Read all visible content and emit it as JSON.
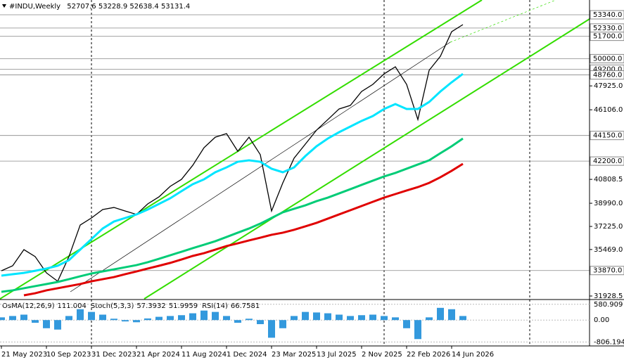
{
  "chart_data": {
    "type": "line",
    "symbol": "#INDU,Weekly",
    "ohlc": [
      52707.6,
      53228.9,
      52638.4,
      53131.4
    ],
    "categories": [
      "21 May 2023",
      null,
      null,
      null,
      "10 Sep 2023",
      null,
      null,
      null,
      "31 Dec 2023",
      null,
      null,
      null,
      "21 Apr 2024",
      null,
      null,
      null,
      "11 Aug 2024",
      null,
      null,
      null,
      "1 Dec 2024",
      null,
      null,
      null,
      "23 Mar 2025",
      null,
      null,
      null,
      "13 Jul 2025",
      null,
      null,
      null,
      "2 Nov 2025",
      null,
      null,
      null,
      "22 Feb 2026",
      null,
      null,
      null,
      "14 Jun 2026",
      null
    ],
    "series": [
      {
        "color": "#000000",
        "values": [
          33850,
          34230,
          35460,
          34930,
          33690,
          33050,
          34930,
          37330,
          37870,
          38510,
          38670,
          38400,
          38140,
          38940,
          39480,
          40280,
          40810,
          41880,
          43220,
          44020,
          44290,
          42950,
          44020,
          42690,
          38400,
          40540,
          42420,
          43490,
          44560,
          45360,
          46170,
          46440,
          47500,
          48040,
          48840,
          49380,
          48040,
          45360,
          49110,
          50180,
          52050,
          52590
        ]
      },
      {
        "color": "#00e5ff",
        "values": [
          33480,
          33590,
          33690,
          33850,
          34020,
          34230,
          34660,
          35460,
          36260,
          37070,
          37600,
          37870,
          38140,
          38510,
          38940,
          39370,
          39910,
          40440,
          40810,
          41350,
          41720,
          42150,
          42260,
          42150,
          41620,
          41350,
          41720,
          42580,
          43330,
          43920,
          44400,
          44830,
          45260,
          45630,
          46170,
          46540,
          46170,
          46170,
          46700,
          47500,
          48200,
          48840
        ]
      },
      {
        "color": "#00cc77",
        "values": [
          32250,
          32360,
          32520,
          32680,
          32840,
          33000,
          33210,
          33430,
          33640,
          33800,
          33960,
          34120,
          34280,
          34500,
          34760,
          35030,
          35300,
          35570,
          35830,
          36100,
          36420,
          36750,
          37070,
          37440,
          37870,
          38300,
          38570,
          38830,
          39150,
          39420,
          39740,
          40060,
          40390,
          40710,
          41030,
          41300,
          41620,
          41940,
          42260,
          42800,
          43330,
          43920
        ]
      },
      {
        "color": "#e00000",
        "values": [
          null,
          null,
          31980,
          32140,
          32360,
          32520,
          32680,
          32840,
          33050,
          33210,
          33370,
          33590,
          33800,
          34020,
          34230,
          34450,
          34710,
          34980,
          35190,
          35460,
          35730,
          35940,
          36160,
          36370,
          36590,
          36750,
          36970,
          37230,
          37500,
          37820,
          38140,
          38460,
          38780,
          39100,
          39420,
          39690,
          39960,
          40220,
          40540,
          40970,
          41460,
          41990
        ]
      }
    ],
    "ylim": [
      31714,
      54464
    ],
    "yticks": [
      {
        "value": 47925,
        "label": "47925.0"
      },
      {
        "value": 46106,
        "label": "46106.0"
      },
      {
        "value": 40808.5,
        "label": "40808.5"
      },
      {
        "value": 38990,
        "label": "38990.0"
      },
      {
        "value": 37225,
        "label": "37225.0"
      },
      {
        "value": 35469,
        "label": "35469.0"
      },
      {
        "value": 31928.5,
        "label": "31928.5"
      }
    ],
    "levels": [
      {
        "value": 53340,
        "label": "53340.0"
      },
      {
        "value": 52330,
        "label": "52330.0"
      },
      {
        "value": 51700,
        "label": "51700.0"
      },
      {
        "value": 50000,
        "label": "50000.0"
      },
      {
        "value": 49200,
        "label": "49200.0"
      },
      {
        "value": 48760,
        "label": "48760.0"
      },
      {
        "value": 44150,
        "label": "44150.0"
      },
      {
        "value": 42200,
        "label": "42200.0"
      },
      {
        "value": 33870,
        "label": "33870.0"
      }
    ],
    "indicator": {
      "parts": [
        {
          "name": "OsMA(12,26,9)",
          "values": [
            111.004
          ]
        },
        {
          "name": "Stoch(5,3,3)",
          "values": [
            57.3932,
            51.9959
          ]
        },
        {
          "name": "RSI(14)",
          "values": [
            66.7581
          ]
        }
      ],
      "color": "#3399dd",
      "values": [
        100,
        150,
        200,
        -100,
        -300,
        -350,
        150,
        400,
        300,
        200,
        50,
        -50,
        -80,
        60,
        120,
        150,
        180,
        250,
        350,
        300,
        150,
        -100,
        50,
        -150,
        -650,
        -300,
        150,
        300,
        280,
        250,
        200,
        150,
        180,
        200,
        150,
        100,
        -300,
        -700,
        100,
        450,
        400,
        150
      ],
      "ylim": [
        -900,
        730
      ],
      "yticks": [
        580.909,
        {
          "value": 0,
          "label": "0.00"
        },
        -806.194
      ]
    }
  }
}
